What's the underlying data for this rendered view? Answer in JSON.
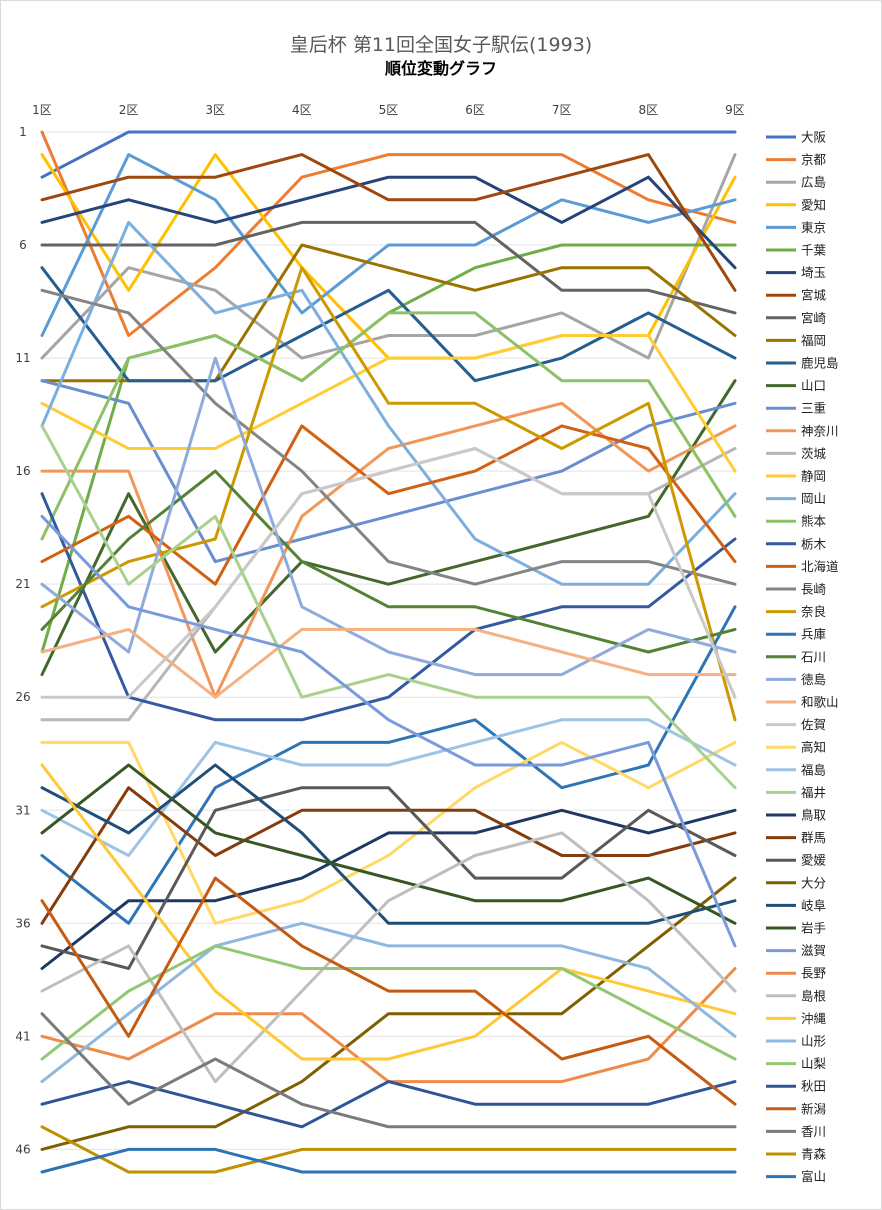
{
  "chart_data": {
    "type": "line",
    "title": "皇后杯 第11回全国女子駅伝(1993)",
    "subtitle": "順位変動グラフ",
    "categories": [
      "1区",
      "2区",
      "3区",
      "4区",
      "5区",
      "6区",
      "7区",
      "8区",
      "9区"
    ],
    "y_ticks": [
      1,
      6,
      11,
      16,
      21,
      26,
      31,
      36,
      41,
      46
    ],
    "ylim": [
      1,
      47
    ],
    "y_inverted": true,
    "legend_position": "right",
    "series": [
      {
        "name": "大阪",
        "color": "#4472C4",
        "values": [
          3,
          1,
          1,
          1,
          1,
          1,
          1,
          1,
          1
        ]
      },
      {
        "name": "京都",
        "color": "#ED7D31",
        "values": [
          1,
          10,
          7,
          3,
          2,
          2,
          2,
          4,
          5
        ]
      },
      {
        "name": "広島",
        "color": "#A5A5A5",
        "values": [
          11,
          7,
          8,
          11,
          10,
          10,
          9,
          11,
          2
        ]
      },
      {
        "name": "愛知",
        "color": "#FFC000",
        "values": [
          2,
          8,
          2,
          7,
          11,
          11,
          10,
          10,
          3
        ]
      },
      {
        "name": "東京",
        "color": "#5B9BD5",
        "values": [
          10,
          2,
          4,
          9,
          6,
          6,
          4,
          5,
          4
        ]
      },
      {
        "name": "千葉",
        "color": "#70AD47",
        "values": [
          24,
          11,
          10,
          12,
          9,
          7,
          6,
          6,
          6
        ]
      },
      {
        "name": "埼玉",
        "color": "#264478",
        "values": [
          5,
          4,
          5,
          4,
          3,
          3,
          5,
          3,
          7
        ]
      },
      {
        "name": "宮城",
        "color": "#9E480E",
        "values": [
          4,
          3,
          3,
          2,
          4,
          4,
          3,
          2,
          8
        ]
      },
      {
        "name": "宮崎",
        "color": "#636363",
        "values": [
          6,
          6,
          6,
          5,
          5,
          5,
          8,
          8,
          9
        ]
      },
      {
        "name": "福岡",
        "color": "#997300",
        "values": [
          12,
          12,
          12,
          6,
          7,
          8,
          7,
          7,
          10
        ]
      },
      {
        "name": "鹿児島",
        "color": "#255E91",
        "values": [
          7,
          12,
          12,
          10,
          8,
          12,
          11,
          9,
          11
        ]
      },
      {
        "name": "山口",
        "color": "#43682B",
        "values": [
          25,
          17,
          24,
          20,
          21,
          20,
          19,
          18,
          12
        ]
      },
      {
        "name": "三重",
        "color": "#698ED0",
        "values": [
          12,
          13,
          20,
          19,
          18,
          17,
          16,
          14,
          13
        ]
      },
      {
        "name": "神奈川",
        "color": "#F1975A",
        "values": [
          16,
          16,
          26,
          18,
          15,
          14,
          13,
          16,
          14
        ]
      },
      {
        "name": "茨城",
        "color": "#B7B7B7",
        "values": [
          27,
          27,
          22,
          17,
          16,
          15,
          17,
          17,
          15
        ]
      },
      {
        "name": "静岡",
        "color": "#FFCD33",
        "values": [
          13,
          15,
          15,
          13,
          11,
          11,
          10,
          10,
          16
        ]
      },
      {
        "name": "岡山",
        "color": "#7CAFDD",
        "values": [
          14,
          5,
          9,
          8,
          14,
          19,
          21,
          21,
          17
        ]
      },
      {
        "name": "熊本",
        "color": "#8CC168",
        "values": [
          19,
          11,
          10,
          12,
          9,
          9,
          12,
          12,
          18
        ]
      },
      {
        "name": "栃木",
        "color": "#335AA1",
        "values": [
          17,
          26,
          27,
          27,
          26,
          23,
          22,
          22,
          19
        ]
      },
      {
        "name": "北海道",
        "color": "#D26012",
        "values": [
          20,
          18,
          21,
          14,
          17,
          16,
          14,
          15,
          20
        ]
      },
      {
        "name": "長崎",
        "color": "#848484",
        "values": [
          8,
          9,
          13,
          16,
          20,
          21,
          20,
          20,
          21
        ]
      },
      {
        "name": "奈良",
        "color": "#CC9A00",
        "values": [
          22,
          20,
          19,
          7,
          13,
          13,
          15,
          13,
          27
        ]
      },
      {
        "name": "兵庫",
        "color": "#2E75B6",
        "values": [
          33,
          36,
          30,
          28,
          28,
          27,
          30,
          29,
          22
        ]
      },
      {
        "name": "石川",
        "color": "#548235",
        "values": [
          23,
          19,
          16,
          20,
          22,
          22,
          23,
          24,
          23
        ]
      },
      {
        "name": "徳島",
        "color": "#8FAADC",
        "values": [
          21,
          24,
          11,
          22,
          24,
          25,
          25,
          23,
          24
        ]
      },
      {
        "name": "和歌山",
        "color": "#F4B183",
        "values": [
          24,
          23,
          26,
          23,
          23,
          23,
          24,
          25,
          25
        ]
      },
      {
        "name": "佐賀",
        "color": "#C9C9C9",
        "values": [
          26,
          26,
          22,
          17,
          16,
          15,
          17,
          17,
          26
        ]
      },
      {
        "name": "高知",
        "color": "#FFD966",
        "values": [
          28,
          28,
          36,
          35,
          33,
          30,
          28,
          30,
          28
        ]
      },
      {
        "name": "福島",
        "color": "#9DC3E6",
        "values": [
          31,
          33,
          28,
          29,
          29,
          28,
          27,
          27,
          29
        ]
      },
      {
        "name": "福井",
        "color": "#A9D18E",
        "values": [
          14,
          21,
          18,
          26,
          25,
          26,
          26,
          26,
          30
        ]
      },
      {
        "name": "鳥取",
        "color": "#203864",
        "values": [
          38,
          35,
          35,
          34,
          32,
          32,
          31,
          32,
          31
        ]
      },
      {
        "name": "群馬",
        "color": "#843C0C",
        "values": [
          36,
          30,
          33,
          31,
          31,
          31,
          33,
          33,
          32
        ]
      },
      {
        "name": "愛媛",
        "color": "#595959",
        "values": [
          37,
          38,
          31,
          30,
          30,
          34,
          34,
          31,
          33
        ]
      },
      {
        "name": "大分",
        "color": "#7F6000",
        "values": [
          46,
          45,
          45,
          43,
          40,
          40,
          40,
          37,
          34
        ]
      },
      {
        "name": "岐阜",
        "color": "#1F4E79",
        "values": [
          30,
          32,
          29,
          32,
          36,
          36,
          36,
          36,
          35
        ]
      },
      {
        "name": "岩手",
        "color": "#375623",
        "values": [
          32,
          29,
          32,
          33,
          34,
          35,
          35,
          34,
          36
        ]
      },
      {
        "name": "滋賀",
        "color": "#7A9BDB",
        "values": [
          18,
          22,
          23,
          24,
          27,
          29,
          29,
          28,
          37
        ]
      },
      {
        "name": "長野",
        "color": "#F08A4B",
        "values": [
          41,
          42,
          40,
          40,
          43,
          43,
          43,
          42,
          38
        ]
      },
      {
        "name": "島根",
        "color": "#BFBFBF",
        "values": [
          39,
          37,
          43,
          39,
          35,
          33,
          32,
          35,
          39
        ]
      },
      {
        "name": "沖縄",
        "color": "#FFC936",
        "values": [
          29,
          34,
          39,
          42,
          42,
          41,
          38,
          39,
          40
        ]
      },
      {
        "name": "山形",
        "color": "#8FB8E0",
        "values": [
          43,
          40,
          37,
          36,
          37,
          37,
          37,
          38,
          41
        ]
      },
      {
        "name": "山梨",
        "color": "#92C873",
        "values": [
          42,
          39,
          37,
          38,
          38,
          38,
          38,
          40,
          42
        ]
      },
      {
        "name": "秋田",
        "color": "#2F5597",
        "values": [
          44,
          43,
          44,
          45,
          43,
          44,
          44,
          44,
          43
        ]
      },
      {
        "name": "新潟",
        "color": "#C55A11",
        "values": [
          35,
          41,
          34,
          37,
          39,
          39,
          42,
          41,
          44
        ]
      },
      {
        "name": "香川",
        "color": "#7B7B7B",
        "values": [
          40,
          44,
          42,
          44,
          45,
          45,
          45,
          45,
          45
        ]
      },
      {
        "name": "青森",
        "color": "#BF9000",
        "values": [
          45,
          47,
          47,
          46,
          46,
          46,
          46,
          46,
          46
        ]
      },
      {
        "name": "富山",
        "color": "#2E74B5",
        "values": [
          47,
          46,
          46,
          47,
          47,
          47,
          47,
          47,
          47
        ]
      }
    ]
  }
}
